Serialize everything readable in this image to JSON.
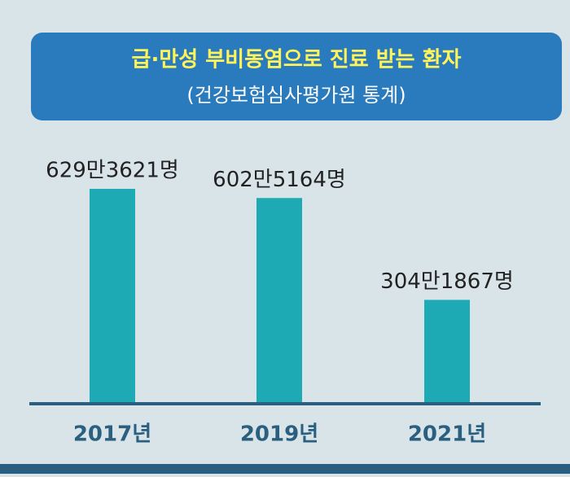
{
  "chart_data": {
    "type": "bar",
    "title": "급·만성 부비동염으로 진료 받는 환자",
    "subtitle": "(건강보험심사평가원 통계)",
    "categories": [
      "2017년",
      "2019년",
      "2021년"
    ],
    "values": [
      6293621,
      6025164,
      3041867
    ],
    "value_labels": [
      "629만3621명",
      "602만5164명",
      "304만1867명"
    ],
    "color": "#1eaab5"
  }
}
